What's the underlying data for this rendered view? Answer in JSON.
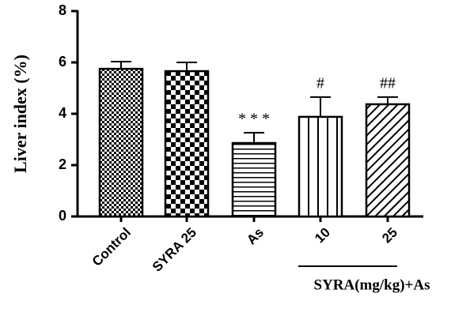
{
  "chart_data": {
    "type": "bar",
    "ylabel": "Liver index (%)",
    "categories": [
      "Control",
      "SYRA 25",
      "As",
      "10",
      "25"
    ],
    "values": [
      5.75,
      5.66,
      2.86,
      3.88,
      4.37
    ],
    "errors": [
      0.28,
      0.34,
      0.4,
      0.77,
      0.28
    ],
    "annotations": [
      null,
      null,
      "* * *",
      "#",
      "##"
    ],
    "group_label": "SYRA(mg/kg)+As",
    "color": "#000000",
    "ylim": [
      0,
      8
    ],
    "yticks": [
      0,
      2,
      4,
      6,
      8
    ],
    "grid": false
  }
}
